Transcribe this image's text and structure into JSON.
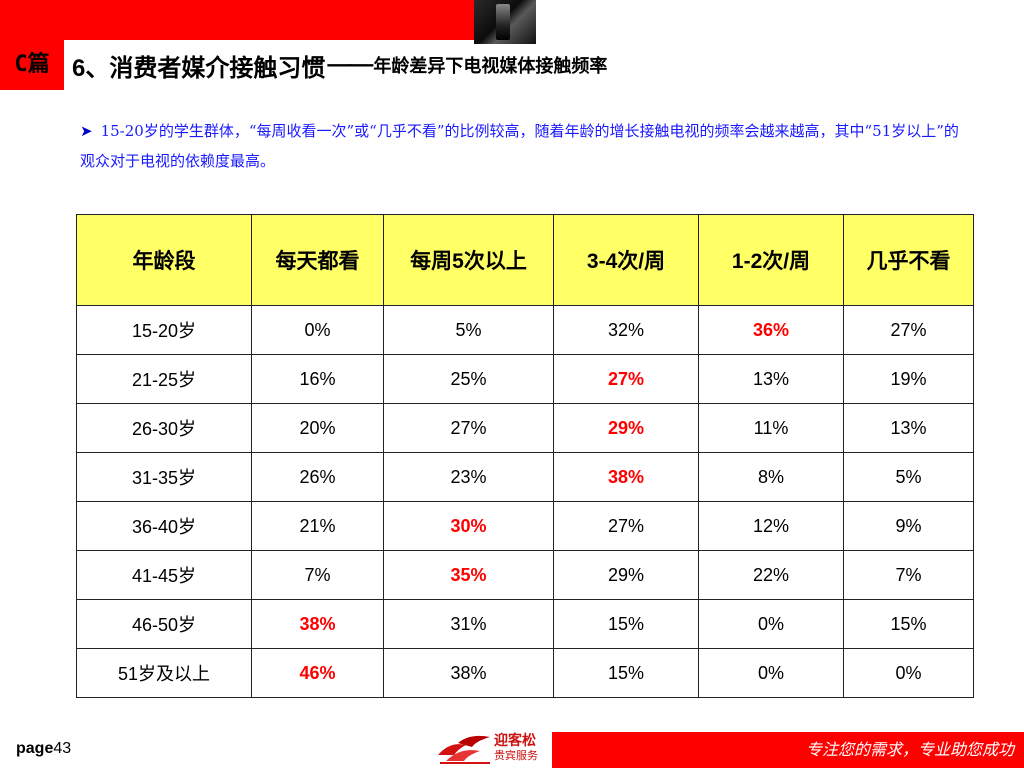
{
  "header": {
    "section_label": "C篇",
    "title_main": "6、消费者媒介接触习惯",
    "title_dash": "——",
    "title_sub": "年龄差异下电视媒体接触频率"
  },
  "note": {
    "icon": "arrow-bullet-icon",
    "text": "15-20岁的学生群体，“每周收看一次”或“几乎不看”的比例较高，随着年龄的增长接触电视的频率会越来越高，其中“51岁以上”的观众对于电视的依赖度最高。"
  },
  "table": {
    "headers": [
      "年龄段",
      "每天都看",
      "每周5次以上",
      "3-4次/周",
      "1-2次/周",
      "几乎不看"
    ],
    "rows": [
      {
        "cells": [
          "15-20岁",
          "0%",
          "5%",
          "32%",
          "36%",
          "27%"
        ],
        "highlight": 4
      },
      {
        "cells": [
          "21-25岁",
          "16%",
          "25%",
          "27%",
          "13%",
          "19%"
        ],
        "highlight": 3
      },
      {
        "cells": [
          "26-30岁",
          "20%",
          "27%",
          "29%",
          "11%",
          "13%"
        ],
        "highlight": 3
      },
      {
        "cells": [
          "31-35岁",
          "26%",
          "23%",
          "38%",
          "8%",
          "5%"
        ],
        "highlight": 3
      },
      {
        "cells": [
          "36-40岁",
          "21%",
          "30%",
          "27%",
          "12%",
          "9%"
        ],
        "highlight": 2
      },
      {
        "cells": [
          "41-45岁",
          "7%",
          "35%",
          "29%",
          "22%",
          "7%"
        ],
        "highlight": 2
      },
      {
        "cells": [
          "46-50岁",
          "38%",
          "31%",
          "15%",
          "0%",
          "15%"
        ],
        "highlight": 1
      },
      {
        "cells": [
          "51岁及以上",
          "46%",
          "38%",
          "15%",
          "0%",
          "0%"
        ],
        "highlight": 1
      }
    ],
    "colors": {
      "header_bg": "#ffff66",
      "highlight": "#ff0000"
    }
  },
  "footer": {
    "page_label": "page",
    "page_number": "43",
    "logo_line1": "迎客松",
    "logo_line2": "贵宾服务",
    "slogan": "专注您的需求，专业助您成功"
  },
  "colors": {
    "accent_red": "#ff0000",
    "note_blue": "#1a1aff"
  }
}
